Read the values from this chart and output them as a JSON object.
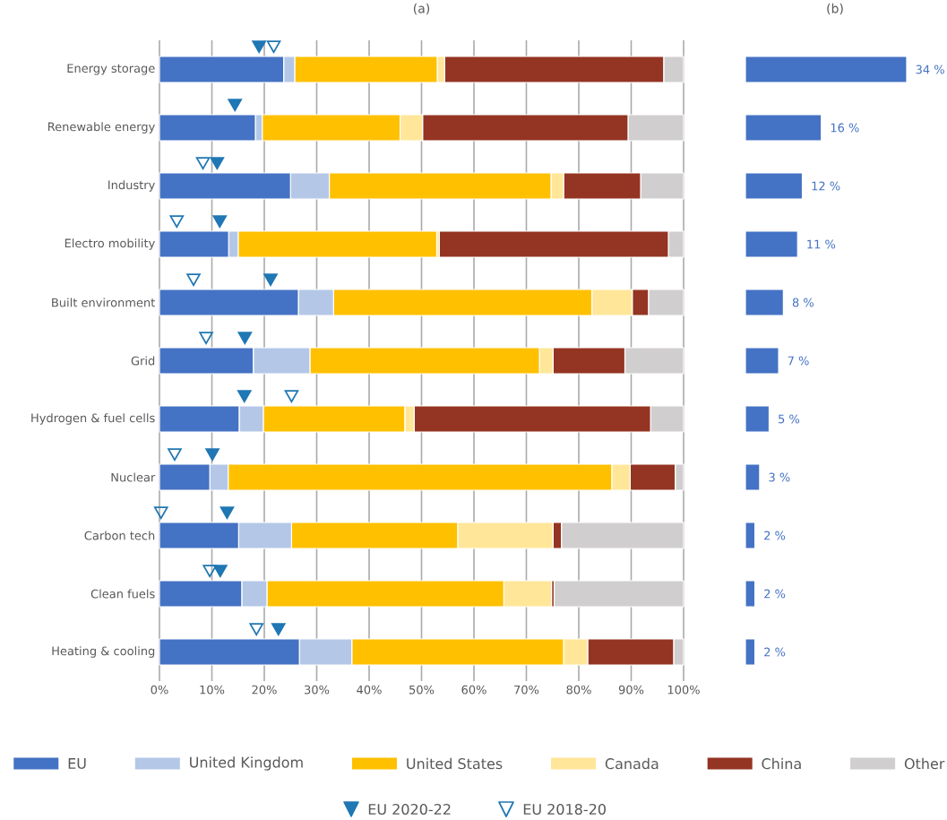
{
  "chart_data": [
    {
      "type": "bar",
      "orientation": "horizontal",
      "stacked": true,
      "title": "(a)",
      "categories": [
        "Energy storage",
        "Renewable energy",
        "Industry",
        "Electro mobility",
        "Built environment",
        "Grid",
        "Hydrogen & fuel cells",
        "Nuclear",
        "Carbon tech",
        "Clean fuels",
        "Heating & cooling"
      ],
      "series": [
        {
          "name": "EU",
          "color": "#4472c4",
          "values": [
            23.7,
            18.3,
            25.0,
            13.2,
            26.5,
            17.9,
            15.2,
            9.6,
            15.1,
            15.7,
            26.7
          ]
        },
        {
          "name": "United Kingdom",
          "color": "#b4c7e7",
          "values": [
            2.1,
            1.3,
            7.4,
            1.8,
            6.7,
            10.8,
            4.6,
            3.5,
            10.1,
            4.8,
            10.0
          ]
        },
        {
          "name": "United States",
          "color": "#ffc000",
          "values": [
            27.2,
            26.3,
            42.3,
            37.9,
            49.3,
            43.8,
            27.0,
            73.2,
            31.7,
            45.2,
            40.4
          ]
        },
        {
          "name": "Canada",
          "color": "#ffe699",
          "values": [
            1.4,
            4.3,
            2.4,
            0.5,
            7.7,
            2.6,
            1.8,
            3.5,
            18.2,
            9.1,
            4.6
          ]
        },
        {
          "name": "China",
          "color": "#943422",
          "values": [
            41.8,
            39.2,
            14.7,
            43.7,
            3.1,
            13.7,
            45.1,
            8.6,
            1.6,
            0.5,
            16.4
          ]
        },
        {
          "name": "Other",
          "color": "#d0cece",
          "values": [
            3.8,
            10.6,
            8.2,
            2.9,
            6.7,
            11.2,
            6.3,
            1.6,
            23.3,
            24.7,
            1.9
          ]
        },
        {
          "name": "EU 2020-22",
          "type": "scatter",
          "marker": "triangle",
          "color": "#1f77b4",
          "values": [
            19.0,
            14.4,
            11.0,
            11.5,
            21.2,
            16.3,
            16.2,
            10.1,
            12.9,
            11.6,
            22.7
          ]
        },
        {
          "name": "EU 2018-20",
          "type": "scatter",
          "marker": "triangle-open",
          "color": "#1f77b4",
          "values": [
            21.8,
            null,
            8.3,
            3.3,
            6.5,
            8.9,
            25.2,
            2.9,
            0.3,
            9.6,
            18.5
          ]
        }
      ],
      "xlim": [
        0,
        100
      ],
      "xticks": [
        {
          "value": 0,
          "label": "0%"
        },
        {
          "value": 10,
          "label": "10%"
        },
        {
          "value": 20,
          "label": "20%"
        },
        {
          "value": 30,
          "label": "30%"
        },
        {
          "value": 40,
          "label": "40%"
        },
        {
          "value": 50,
          "label": "50%"
        },
        {
          "value": 60,
          "label": "60%"
        },
        {
          "value": 70,
          "label": "70%"
        },
        {
          "value": 80,
          "label": "80%"
        },
        {
          "value": 90,
          "label": "90%"
        },
        {
          "value": 100,
          "label": "100%"
        }
      ],
      "grid": "x",
      "legend": "bottom"
    },
    {
      "type": "bar",
      "orientation": "horizontal",
      "title": "(b)",
      "categories": [
        null,
        null,
        null,
        null,
        null,
        null,
        null,
        null,
        null,
        null,
        null
      ],
      "values": [
        34,
        16,
        12,
        11,
        8,
        7,
        5,
        3,
        2,
        2,
        2
      ],
      "color": "#4472c4",
      "value_labels": [
        "34 %",
        "16 %",
        "12 %",
        "11 %",
        "8 %",
        "7 %",
        "5 %",
        "3 %",
        "2 %",
        "2 %",
        "2 %"
      ]
    }
  ]
}
